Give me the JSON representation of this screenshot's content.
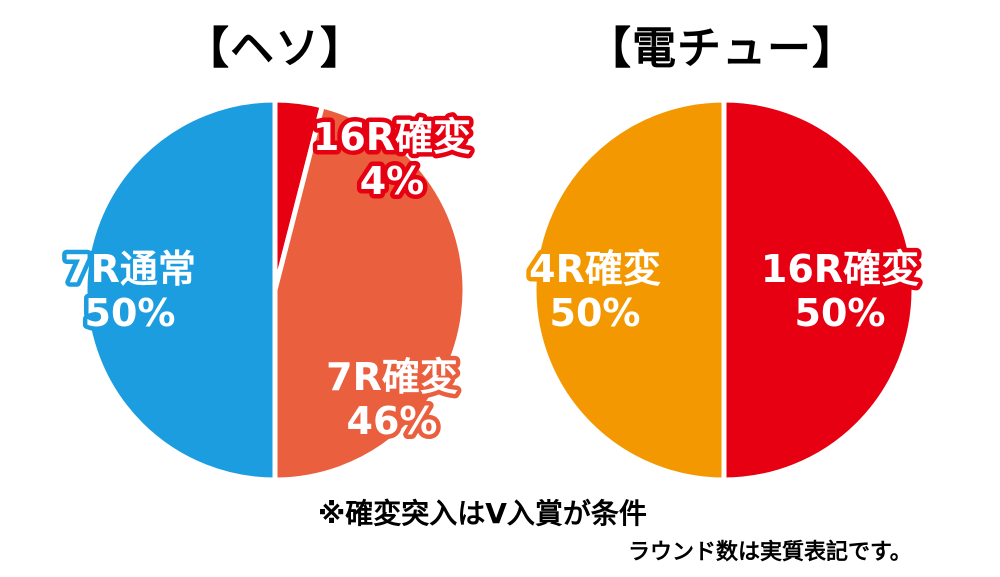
{
  "chart_data": [
    {
      "type": "pie",
      "title": "【ヘソ】",
      "slices": [
        {
          "label": "16R確変",
          "value": 4,
          "value_text": "4%",
          "color": "#e60012"
        },
        {
          "label": "7R確変",
          "value": 46,
          "value_text": "46%",
          "color": "#ea5f3e"
        },
        {
          "label": "7R通常",
          "value": 50,
          "value_text": "50%",
          "color": "#1b9de0"
        }
      ]
    },
    {
      "type": "pie",
      "title": "【電チュー】",
      "slices": [
        {
          "label": "16R確変",
          "value": 50,
          "value_text": "50%",
          "color": "#e60012"
        },
        {
          "label": "4R確変",
          "value": 50,
          "value_text": "50%",
          "color": "#f39800"
        }
      ]
    }
  ],
  "notes": {
    "main": "※確変突入はV入賞が条件",
    "sub": "ラウンド数は実質表記です。"
  }
}
